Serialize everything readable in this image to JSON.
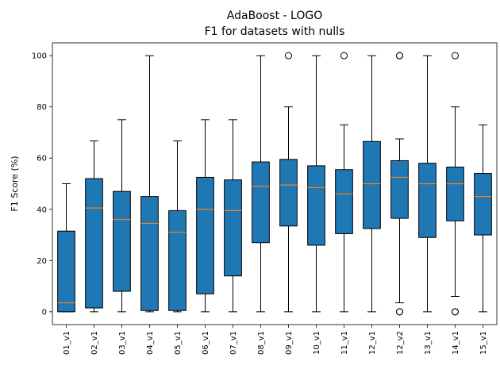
{
  "chart_data": {
    "type": "box",
    "title": "AdaBoost - LOGO",
    "subtitle": "F1 for datasets with nulls",
    "xlabel": "",
    "ylabel": "F1 Score (%)",
    "ylim": [
      -5,
      105
    ],
    "yticks": [
      0,
      20,
      40,
      60,
      80,
      100
    ],
    "grid": false,
    "colors": {
      "box": "#1f77b4",
      "median": "#ff7f0e",
      "line": "#000000"
    },
    "categories": [
      "01_v1",
      "02_v1",
      "03_v1",
      "04_v1",
      "05_v1",
      "06_v1",
      "07_v1",
      "08_v1",
      "09_v1",
      "10_v1",
      "11_v1",
      "12_v1",
      "12_v2",
      "13_v1",
      "14_v1",
      "15_v1"
    ],
    "boxes": [
      {
        "whisker_low": 0,
        "q1": 0,
        "median": 3.5,
        "q3": 31.5,
        "whisker_high": 50,
        "outliers": []
      },
      {
        "whisker_low": 0,
        "q1": 1.5,
        "median": 40.5,
        "q3": 52,
        "whisker_high": 66.7,
        "outliers": []
      },
      {
        "whisker_low": 0,
        "q1": 8,
        "median": 36,
        "q3": 47,
        "whisker_high": 75,
        "outliers": []
      },
      {
        "whisker_low": 0,
        "q1": 0.5,
        "median": 34.5,
        "q3": 45,
        "whisker_high": 100,
        "outliers": []
      },
      {
        "whisker_low": 0,
        "q1": 0.5,
        "median": 31,
        "q3": 39.5,
        "whisker_high": 66.7,
        "outliers": []
      },
      {
        "whisker_low": 0,
        "q1": 7,
        "median": 40,
        "q3": 52.5,
        "whisker_high": 75,
        "outliers": []
      },
      {
        "whisker_low": 0,
        "q1": 14,
        "median": 39.5,
        "q3": 51.5,
        "whisker_high": 75,
        "outliers": []
      },
      {
        "whisker_low": 0,
        "q1": 27,
        "median": 49,
        "q3": 58.5,
        "whisker_high": 100,
        "outliers": []
      },
      {
        "whisker_low": 0,
        "q1": 33.5,
        "median": 49.5,
        "q3": 59.5,
        "whisker_high": 80,
        "outliers": [
          100
        ]
      },
      {
        "whisker_low": 0,
        "q1": 26,
        "median": 48.5,
        "q3": 57,
        "whisker_high": 100,
        "outliers": []
      },
      {
        "whisker_low": 0,
        "q1": 30.5,
        "median": 46,
        "q3": 55.5,
        "whisker_high": 73,
        "outliers": [
          100
        ]
      },
      {
        "whisker_low": 0,
        "q1": 32.5,
        "median": 50,
        "q3": 66.5,
        "whisker_high": 100,
        "outliers": []
      },
      {
        "whisker_low": 3.5,
        "q1": 36.5,
        "median": 52.5,
        "q3": 59,
        "whisker_high": 67.5,
        "outliers": [
          100,
          100,
          0,
          0
        ]
      },
      {
        "whisker_low": 0,
        "q1": 29,
        "median": 50,
        "q3": 58,
        "whisker_high": 100,
        "outliers": []
      },
      {
        "whisker_low": 6,
        "q1": 35.5,
        "median": 50,
        "q3": 56.5,
        "whisker_high": 80,
        "outliers": [
          100,
          0,
          0
        ]
      },
      {
        "whisker_low": 0,
        "q1": 30,
        "median": 45,
        "q3": 54,
        "whisker_high": 73,
        "outliers": []
      }
    ]
  }
}
